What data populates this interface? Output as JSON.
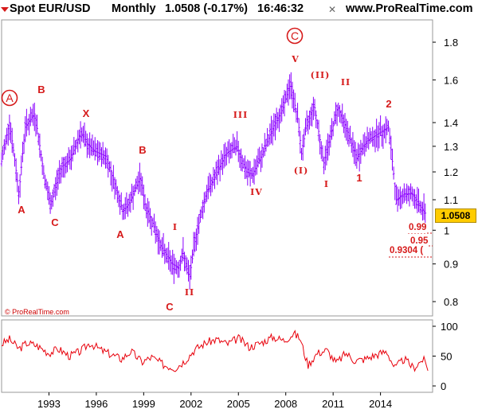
{
  "header": {
    "instrument": "Spot EUR/USD",
    "period": "Monthly",
    "price": "1.0508 (-0.17%)",
    "time": "16:46:32",
    "website": "www.ProRealTime.com",
    "collapse_icon": "triangle-down-icon",
    "close_icon": "close-x-icon"
  },
  "copyright": "© ProRealTime.com",
  "current_price": "1.0508",
  "targets": [
    "0.99",
    "0.95",
    "0.9304 ("
  ],
  "colors": {
    "candles": "#8b00ff",
    "labels": "#d61a1a",
    "oscillator": "#e8000b",
    "badge": "#ffcc00"
  },
  "chart_data": [
    {
      "type": "ohlc",
      "xaxis": {
        "ticks": [
          "1993",
          "1996",
          "1999",
          "2002",
          "2005",
          "2008",
          "2011",
          "2014"
        ],
        "range": [
          1990.0,
          2017.3
        ]
      },
      "yaxis": {
        "ticks": [
          "0.8",
          "0.9",
          "1",
          "1.1",
          "1.2",
          "1.3",
          "1.4",
          "1.6",
          "1.8"
        ],
        "scale": "log",
        "range": [
          0.765,
          1.93
        ]
      },
      "grid": false,
      "series": [
        {
          "x": [
            1990.0,
            1990.5,
            1991.1,
            1991.5,
            1992.1,
            1992.7,
            1993.1,
            1993.8,
            1994.4,
            1995.0,
            1995.4,
            1995.9,
            1996.6,
            1997.2,
            1997.7,
            1998.1,
            1998.8,
            1999.1,
            1999.6,
            2000.1,
            2000.8,
            2001.2,
            2001.5,
            2001.9,
            2002.3,
            2003.0,
            2003.6,
            2004.2,
            2004.9,
            2005.5,
            2005.9,
            2006.6,
            2007.2,
            2007.8,
            2008.3,
            2008.8,
            2009.0,
            2009.3,
            2009.8,
            2010.4,
            2010.8,
            2011.3,
            2011.8,
            2012.5,
            2013.1,
            2013.8,
            2014.5,
            2015.0,
            2015.5,
            2016.0,
            2016.5,
            2016.9
          ],
          "close": [
            1.24,
            1.4,
            1.12,
            1.38,
            1.44,
            1.18,
            1.08,
            1.22,
            1.25,
            1.36,
            1.31,
            1.28,
            1.26,
            1.15,
            1.06,
            1.09,
            1.18,
            1.08,
            1.02,
            0.95,
            0.9,
            0.89,
            0.93,
            0.86,
            0.98,
            1.13,
            1.19,
            1.27,
            1.3,
            1.2,
            1.19,
            1.28,
            1.38,
            1.46,
            1.58,
            1.4,
            1.27,
            1.38,
            1.48,
            1.23,
            1.33,
            1.47,
            1.38,
            1.25,
            1.32,
            1.35,
            1.38,
            1.1,
            1.12,
            1.12,
            1.08,
            1.05
          ]
        }
      ],
      "wave_labels": [
        "A",
        "B",
        "C",
        "X",
        "B",
        "A",
        "C",
        "I",
        "II",
        "III",
        "IV",
        "V",
        "(I)",
        "(II)",
        "I",
        "II",
        "1",
        "2"
      ],
      "circled_labels": [
        "A",
        "C"
      ]
    },
    {
      "type": "line",
      "yaxis": {
        "ticks": [
          "0",
          "50",
          "100"
        ],
        "range": [
          0,
          100
        ]
      },
      "series": [
        {
          "x": [
            1990.0,
            1990.5,
            1991.1,
            1991.6,
            1992.2,
            1993.0,
            1993.6,
            1994.3,
            1995.0,
            1995.6,
            1996.3,
            1997.0,
            1997.6,
            1998.2,
            1998.9,
            1999.5,
            2000.3,
            2001.0,
            2001.6,
            2002.2,
            2002.9,
            2003.6,
            2004.3,
            2005.0,
            2005.7,
            2006.4,
            2007.2,
            2007.9,
            2008.5,
            2008.9,
            2009.4,
            2010.0,
            2010.6,
            2011.2,
            2011.8,
            2012.4,
            2013.0,
            2013.7,
            2014.4,
            2014.9,
            2015.5,
            2016.1,
            2016.7,
            2017.0
          ],
          "values": [
            70,
            78,
            62,
            72,
            68,
            55,
            62,
            50,
            58,
            72,
            60,
            52,
            45,
            58,
            40,
            48,
            35,
            30,
            42,
            60,
            72,
            78,
            70,
            80,
            65,
            72,
            82,
            76,
            88,
            80,
            35,
            55,
            60,
            38,
            55,
            42,
            45,
            52,
            58,
            30,
            45,
            30,
            45,
            30
          ]
        }
      ]
    }
  ]
}
